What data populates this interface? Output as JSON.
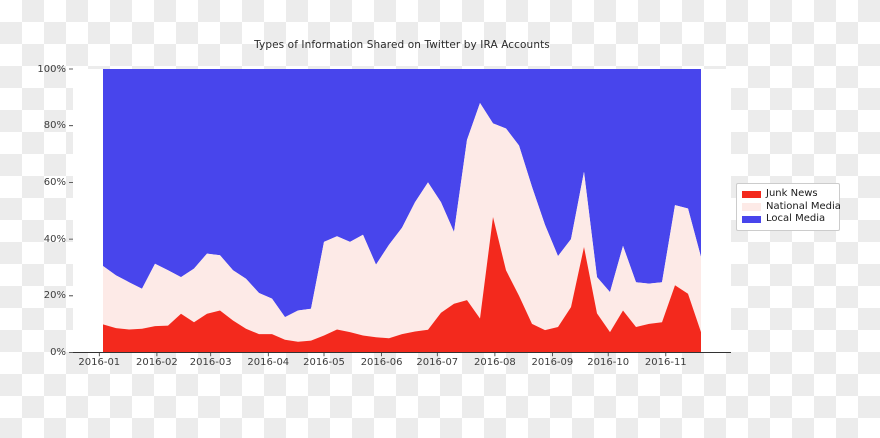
{
  "title": "Types of Information Shared on Twitter by IRA Accounts",
  "axes": {
    "y_ticks": [
      "100%",
      "80%",
      "60%",
      "40%",
      "20%",
      "0%"
    ],
    "x_ticks": [
      "2016-01",
      "2016-02",
      "2016-03",
      "2016-04",
      "2016-05",
      "2016-06",
      "2016-07",
      "2016-08",
      "2016-09",
      "2016-10",
      "2016-11"
    ]
  },
  "legend": {
    "items": [
      {
        "label": "Junk News",
        "color": "#f3291d"
      },
      {
        "label": "National Media",
        "color": "#fdeae7"
      },
      {
        "label": "Local Media",
        "color": "#4845ec"
      }
    ]
  },
  "chart_data": {
    "type": "area",
    "stacked": true,
    "normalized": true,
    "units": "percent",
    "title": "Types of Information Shared on Twitter by IRA Accounts",
    "xlabel": "",
    "ylabel": "",
    "ylim": [
      0,
      100
    ],
    "grid": false,
    "legend_position": "right-outside",
    "x_tick_labels": [
      "2016-01",
      "2016-02",
      "2016-03",
      "2016-04",
      "2016-05",
      "2016-06",
      "2016-07",
      "2016-08",
      "2016-09",
      "2016-10",
      "2016-11"
    ],
    "x": [
      "2016-01-03",
      "2016-01-10",
      "2016-01-17",
      "2016-01-24",
      "2016-01-31",
      "2016-02-07",
      "2016-02-14",
      "2016-02-21",
      "2016-02-28",
      "2016-03-06",
      "2016-03-13",
      "2016-03-20",
      "2016-03-27",
      "2016-04-03",
      "2016-04-10",
      "2016-04-17",
      "2016-04-24",
      "2016-05-01",
      "2016-05-08",
      "2016-05-15",
      "2016-05-22",
      "2016-05-29",
      "2016-06-05",
      "2016-06-12",
      "2016-06-19",
      "2016-06-26",
      "2016-07-03",
      "2016-07-10",
      "2016-07-17",
      "2016-07-24",
      "2016-07-31",
      "2016-08-07",
      "2016-08-14",
      "2016-08-21",
      "2016-08-28",
      "2016-09-04",
      "2016-09-11",
      "2016-09-18",
      "2016-09-25",
      "2016-10-02",
      "2016-10-09",
      "2016-10-16",
      "2016-10-23",
      "2016-10-30",
      "2016-11-06",
      "2016-11-13",
      "2016-11-20"
    ],
    "series": [
      {
        "name": "Junk News",
        "color": "#f3291d",
        "values": [
          9.9,
          8.6,
          8.1,
          8.4,
          9.3,
          9.5,
          13.7,
          10.7,
          13.7,
          14.8,
          11.3,
          8.4,
          6.5,
          6.5,
          4.5,
          3.8,
          4.2,
          6,
          8.1,
          7.2,
          6,
          5.4,
          5,
          6.5,
          7.4,
          8,
          14,
          17.2,
          18.5,
          12,
          47.8,
          29,
          20,
          10.1,
          7.9,
          9,
          16,
          37.2,
          13.8,
          7.2,
          14.8,
          9,
          10.1,
          10.7,
          23.7,
          20.7,
          7.2
        ]
      },
      {
        "name": "National Media",
        "color": "#fdeae7",
        "values": [
          20.6,
          18.6,
          16.7,
          14.1,
          22,
          19.5,
          12.9,
          18.9,
          21.2,
          19.5,
          17.7,
          17.6,
          14.5,
          12.5,
          8,
          11,
          11.2,
          33,
          32.9,
          31.8,
          35.5,
          25.6,
          33,
          37.5,
          45.6,
          52,
          39,
          25.3,
          56.5,
          76,
          33,
          50,
          53,
          48.3,
          37.1,
          25,
          24,
          26.5,
          12.8,
          14.1,
          22.8,
          15.8,
          14.2,
          14.1,
          28.3,
          30.1,
          26.5
        ]
      },
      {
        "name": "Local Media",
        "color": "#4845ec",
        "values": [
          69.5,
          72.8,
          75.2,
          77.5,
          68.7,
          71,
          73.4,
          70.4,
          65.1,
          65.7,
          71,
          74,
          79,
          81,
          87.5,
          85.2,
          84.6,
          61,
          59,
          61,
          58.5,
          69,
          62,
          56,
          47,
          40,
          47,
          57.5,
          25,
          12,
          19.2,
          21,
          27,
          41.6,
          55,
          66,
          60,
          36.3,
          73.4,
          78.7,
          62.4,
          75.2,
          75.7,
          75.2,
          48,
          49.2,
          66.3
        ]
      }
    ]
  }
}
